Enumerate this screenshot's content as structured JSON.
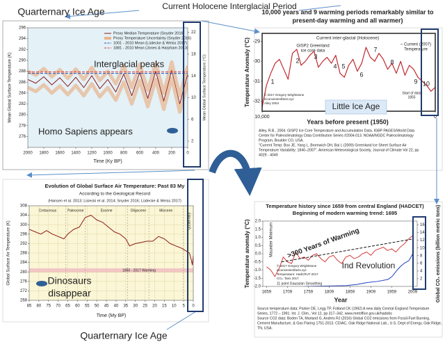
{
  "page_labels": [
    "Current Holocene Interglacial Period",
    "Quarternary Ice Age",
    "Quarternary Ice Age"
  ],
  "chart_data": [
    {
      "type": "line",
      "xlabel": "Time (Ky BP)",
      "ylabel": "Mean Global Surface Temperature (K)",
      "y2label": "Mean Global Surface Temperature (°C)",
      "xlim": [
        2000,
        0
      ],
      "xticks": [
        2000,
        1800,
        1600,
        1400,
        1200,
        1000,
        800,
        600,
        400,
        200,
        0
      ],
      "ylim": [
        274,
        296
      ],
      "yticks": [
        276,
        278,
        280,
        282,
        284,
        286,
        288,
        290,
        292,
        294,
        296
      ],
      "y2lim": [
        0.85,
        22.85
      ],
      "y2ticks": [
        2,
        6,
        10,
        14,
        18,
        22
      ],
      "grid": false,
      "legend": "top-right",
      "background": "#e4f1f7",
      "series": [
        {
          "name": "Proxy Median Temperature (Snyder 2016)",
          "color": "#8b1a1a",
          "x": [
            2000,
            1900,
            1800,
            1700,
            1600,
            1500,
            1400,
            1300,
            1200,
            1100,
            1000,
            900,
            800,
            700,
            600,
            500,
            400,
            300,
            200,
            100,
            0
          ],
          "values": [
            286.5,
            285.8,
            287.0,
            285.5,
            286.8,
            285.2,
            286.9,
            285.0,
            287.2,
            284.8,
            286.5,
            284.2,
            287.5,
            283.5,
            287.8,
            283.0,
            288.0,
            282.5,
            288.2,
            282.0,
            287.5
          ]
        },
        {
          "name": "Proxy Temperature Uncertainty (Snyder 2016)",
          "color": "#e8b48c",
          "x": [
            2000,
            1900,
            1800,
            1700,
            1600,
            1500,
            1400,
            1300,
            1200,
            1100,
            1000,
            900,
            800,
            700,
            600,
            500,
            400,
            300,
            200,
            100,
            0
          ],
          "values": [
            288,
            287.3,
            288.5,
            287,
            288.3,
            286.7,
            288.4,
            286.5,
            288.7,
            286.3,
            288,
            285.7,
            289,
            285,
            289.3,
            284.5,
            289.5,
            284,
            289.7,
            283.5,
            289
          ],
          "lower": [
            285,
            284.3,
            285.5,
            284,
            285.3,
            283.7,
            285.4,
            283.5,
            285.7,
            283.3,
            285,
            282.7,
            286,
            282,
            286.3,
            281.5,
            286.5,
            281,
            286.7,
            280.5,
            286
          ]
        },
        {
          "name": "1001 - 2010 Mean (Lüdecke & Weiss 2017)",
          "color": "#2a4fb0",
          "dash": true,
          "x": [
            2000,
            0
          ],
          "values": [
            287.6,
            287.6
          ]
        },
        {
          "name": "1881 - 2010 Mean (Jones & Harpham 2013)",
          "color": "#d43a3a",
          "dash": true,
          "x": [
            2000,
            0
          ],
          "values": [
            287.9,
            287.9
          ]
        }
      ],
      "annotations": [
        "Interglacial peaks",
        "Homo Sapiens appears"
      ]
    },
    {
      "type": "line",
      "title": [
        "10,000 years and 9 warming periods remarkably similar to",
        "present-day warming and all warmer)"
      ],
      "xlabel": "Years before present (1950)",
      "ylabel": "Temperature Anomaly (°C)",
      "xlim": [
        10000,
        0
      ],
      "xticks": [
        {
          "value": 10000,
          "label": "10,000"
        },
        0
      ],
      "ylim": [
        -32.5,
        -28.6
      ],
      "yticks": [
        -32,
        -31,
        -30,
        -29
      ],
      "grid": false,
      "background": "#ffffff",
      "series": [
        {
          "color": "#c0282d",
          "x": [
            10000,
            9750,
            9500,
            9250,
            9000,
            8750,
            8500,
            8250,
            8000,
            7750,
            7500,
            7250,
            7000,
            6750,
            6500,
            6250,
            6000,
            5750,
            5500,
            5250,
            5000,
            4750,
            4500,
            4250,
            4000,
            3750,
            3500,
            3250,
            3000,
            2750,
            2500,
            2250,
            2000,
            1750,
            1500,
            1250,
            1000,
            750,
            500,
            250,
            0
          ],
          "values": [
            -32.3,
            -31.2,
            -30.6,
            -30.1,
            -29.9,
            -30.4,
            -30.9,
            -29.6,
            -29.4,
            -30.2,
            -30.0,
            -29.7,
            -29.5,
            -30.3,
            -30.0,
            -29.8,
            -30.1,
            -29.7,
            -30.6,
            -30.8,
            -30.2,
            -29.9,
            -30.5,
            -30.1,
            -29.3,
            -29.8,
            -30.0,
            -29.6,
            -29.9,
            -30.4,
            -30.1,
            -30.6,
            -30.0,
            -30.7,
            -30.2,
            -30.4,
            -30.8,
            -31.0,
            -31.2,
            -31.5,
            -31.3
          ]
        }
      ],
      "annotations": [
        "1",
        "2",
        "3",
        "4",
        "5",
        "6",
        "7",
        "8",
        "9",
        "10",
        "Current inter-glacial (Holocene)",
        "GISP2 Greenland",
        "ice core data",
        "~ Current (2007)",
        "Temperature",
        "Start of data",
        "1855",
        "© 2017 Gregory Wrightstone",
        "inconvenientfacts.xyz",
        "Alley 2004",
        "Little Ice Age"
      ],
      "caption": [
        "Alley, R.B.. 2004. GISP2 Ice Core Temperature and Accumulation Data. IGBP PAGES/World Data",
        "Center for Paleoclimatology Data Contribution Series #2004-013. NOAA/NGDC Paleoclimatology",
        "Program, Boulder CO, USA.",
        "\"Current Temp: Box JE, Yang L, Bromwich DH, Bai L (2009) Greenland Ice Sheet Surface Air",
        "Temperature Variability: 1840–2007\". American Meteorological Society, Journal of Climate Vol 22, pp",
        "4029 - 4049"
      ]
    },
    {
      "type": "line",
      "title": [
        "Evolution of Global Surface Air Temperature: Past 83 My",
        "According to the Geological Record",
        "(Hansen et al. 2013; Lisiecki et al. 2014; Snyder 2016; Lüdecke & Weiss 2017)"
      ],
      "xlabel": "Time (My BP)",
      "ylabel": "Global Surface Air Temperature (K)",
      "xlim": [
        85,
        0
      ],
      "xticks": [
        85,
        80,
        75,
        70,
        65,
        60,
        55,
        50,
        45,
        40,
        35,
        30,
        25,
        20,
        15,
        10,
        5,
        0
      ],
      "ylim": [
        268,
        308
      ],
      "yticks": [
        268,
        272,
        276,
        280,
        284,
        288,
        292,
        296,
        300,
        304,
        308
      ],
      "grid": true,
      "background": "#fbf6d5",
      "epochs": [
        {
          "label": "Cretaceous",
          "end": 66
        },
        {
          "label": "Paleocene",
          "end": 56
        },
        {
          "label": "Eocene",
          "end": 34
        },
        {
          "label": "Oligocene",
          "end": 23
        },
        {
          "label": "Miocene",
          "end": 5.3
        },
        {
          "label": "Quaternary",
          "end": 0
        }
      ],
      "series": [
        {
          "color": "#8b1a1a",
          "x": [
            85,
            82,
            79,
            76,
            73,
            70,
            67,
            65,
            62,
            59,
            56,
            53,
            50,
            47,
            44,
            41,
            38,
            35,
            33,
            30,
            27,
            24,
            21,
            18,
            15,
            12,
            9,
            6,
            4,
            2,
            1,
            0.5,
            0
          ],
          "values": [
            298,
            297,
            296,
            297.5,
            296,
            295,
            294,
            296,
            298,
            299,
            303,
            304,
            302,
            301,
            299,
            297,
            296,
            294,
            291,
            292,
            292.5,
            293,
            293,
            295,
            294,
            292,
            291,
            290,
            289,
            288,
            285,
            283,
            287
          ]
        }
      ],
      "annotations": [
        "Dinosaurs",
        "disappear",
        "1850 - 2017 Warming"
      ]
    },
    {
      "type": "line",
      "title": [
        "Temperature history since 1659 from central England (HADCET)",
        "Beginning of modern warming trend: 1695"
      ],
      "xlabel": "Year",
      "ylabel": "Temperature anomaly (°C)",
      "y2label": "Global CO₂ emissions (billion metric tons)",
      "xlim": [
        1650,
        2020
      ],
      "xticks": [
        1659,
        1709,
        1759,
        1809,
        1859,
        1909,
        1959,
        2009
      ],
      "ylim": [
        -2,
        2
      ],
      "yticks": [
        {
          "value": -2,
          "label": "-2.0"
        },
        -1.5,
        {
          "value": -1,
          "label": "-1.0"
        },
        -0.5,
        {
          "value": 0,
          "label": "0.0"
        },
        0.5,
        {
          "value": 1,
          "label": "1.0"
        },
        1.5,
        {
          "value": 2,
          "label": "2.0"
        }
      ],
      "y2lim": [
        0,
        17
      ],
      "y2ticks": [
        2,
        4,
        6,
        8,
        10,
        12,
        14,
        16
      ],
      "grid": false,
      "background": "#ffffff",
      "series": [
        {
          "color": "#d63a3a",
          "x": [
            1659,
            1669,
            1679,
            1689,
            1699,
            1709,
            1719,
            1729,
            1739,
            1749,
            1759,
            1769,
            1779,
            1789,
            1799,
            1809,
            1819,
            1829,
            1839,
            1849,
            1859,
            1869,
            1879,
            1889,
            1899,
            1909,
            1919,
            1929,
            1939,
            1949,
            1959,
            1969,
            1979,
            1989,
            1999,
            2009
          ],
          "values": [
            -0.8,
            -1.0,
            -1.4,
            -0.9,
            -0.2,
            -0.5,
            -0.6,
            0.1,
            -0.3,
            -0.2,
            -0.4,
            -0.1,
            0.0,
            -0.3,
            -0.5,
            -0.2,
            -0.1,
            -0.4,
            -0.6,
            -0.2,
            -0.1,
            -0.3,
            -0.2,
            0.0,
            0.1,
            -0.1,
            0.2,
            0.3,
            0.4,
            0.2,
            0.3,
            0.1,
            0.4,
            0.6,
            0.9,
            1.1
          ]
        },
        {
          "color": "#111111",
          "dash": true,
          "x": [
            1695,
            2009
          ],
          "values": [
            -0.5,
            0.9
          ]
        },
        {
          "color": "#1f3fc0",
          "axis": "y2",
          "x": [
            1750,
            1800,
            1850,
            1875,
            1900,
            1925,
            1950,
            1960,
            1970,
            1980,
            1990,
            2000,
            2009
          ],
          "values": [
            0,
            0.1,
            0.2,
            0.5,
            1.0,
            1.3,
            1.8,
            2.6,
            4.0,
            5.2,
            6.1,
            6.7,
            8.4
          ]
        }
      ],
      "annotations": [
        ">300 Years of Warming",
        "Ind Revolution",
        "Maunder Minimum",
        "© 2017 Gregory Wrightstone",
        "inconvenientfacts.xyz",
        "Temperature: HadCRUT 2017",
        "CO₂: Tans 2017",
        "11 point Gaussian Smoothing"
      ],
      "caption": [
        "Source temperature data: Parker DE, Legg TP, Folland CK (1992) A new daily Central England Temperature",
        "Series, 1772 – 1991. Int. J. Clim., Vol 12, pp 317–342. www.metoffice.gov.uk/hadobs",
        "Source CO2 data: Boden TA, Marland G, Andres RJ (2016) Global CO2 emissions from Fossil-Fuel Burning,",
        "Cement Manufacture, & Gas Flaring 1751-2013. CDIAC, Oak Ridge National Lab., U.S. Dept of Energy, Oak Ridge,",
        "TN, USA."
      ]
    }
  ]
}
